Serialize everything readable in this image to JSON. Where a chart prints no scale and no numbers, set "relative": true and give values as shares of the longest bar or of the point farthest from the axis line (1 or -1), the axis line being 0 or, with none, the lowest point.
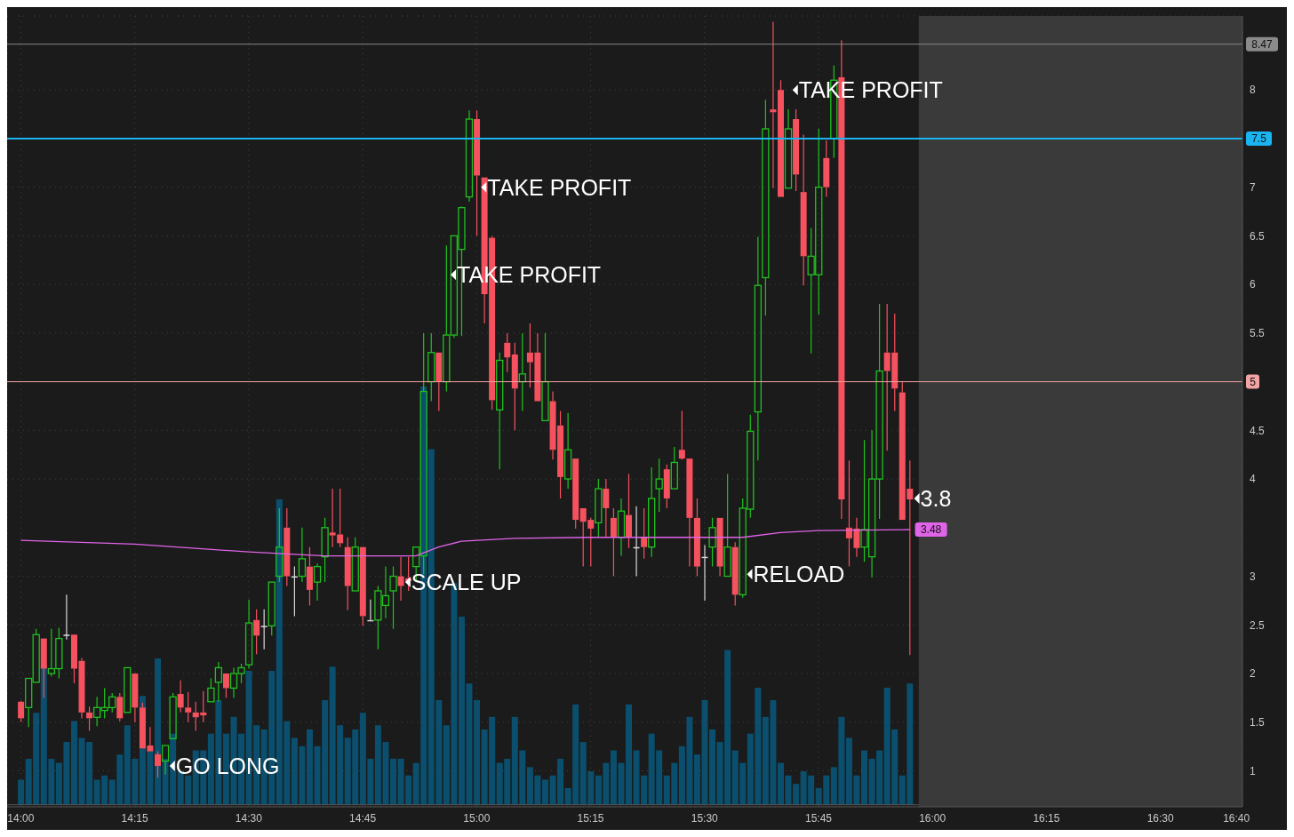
{
  "chart_data": [
    {
      "type": "candlestick",
      "x": [
        14,
        14.0167,
        14.0333,
        14.05,
        14.0667,
        14.0833,
        14.1,
        14.1167,
        14.1333,
        14.15,
        14.1667,
        14.1833,
        14.2,
        14.2167,
        14.2333,
        14.25,
        14.2667,
        14.2833,
        14.3,
        14.3167,
        14.3333,
        14.35,
        14.3667,
        14.3833,
        14.4,
        14.4167,
        14.4333,
        14.45,
        14.4667,
        14.4833,
        14.5,
        14.5167,
        14.5333,
        14.55,
        14.5667,
        14.5833,
        14.6,
        14.6167,
        14.6333,
        14.65,
        14.6667,
        14.6833,
        14.7,
        14.7167,
        14.7333,
        14.75,
        14.7667,
        14.7833,
        14.8,
        14.8167,
        14.8333,
        14.85,
        14.8667,
        14.8833,
        14.9,
        14.9167,
        14.9333,
        14.95,
        14.9667,
        14.9833,
        15,
        15.0167,
        15.0333,
        15.05,
        15.0667,
        15.0833,
        15.1,
        15.1167,
        15.1333,
        15.15,
        15.1667,
        15.1833,
        15.2,
        15.2167,
        15.2333,
        15.25,
        15.2667,
        15.2833,
        15.3,
        15.3167,
        15.3333,
        15.35,
        15.3667,
        15.3833,
        15.4,
        15.4167,
        15.4333,
        15.45,
        15.4667,
        15.4833,
        15.5,
        15.5167,
        15.5333,
        15.55,
        15.5667,
        15.5833,
        15.6,
        15.6167,
        15.6333,
        15.65,
        15.6667,
        15.6833,
        15.7,
        15.7167,
        15.7333,
        15.75,
        15.7667,
        15.7833,
        15.8,
        15.8167,
        15.8333,
        15.85,
        15.8667,
        15.8833,
        15.9,
        15.9167,
        15.9333,
        15.95
      ],
      "ohlc": [
        [
          1.71,
          1.72,
          1.5,
          1.54
        ],
        [
          1.65,
          1.95,
          1.45,
          1.95
        ],
        [
          1.91,
          2.46,
          1.91,
          2.4
        ],
        [
          2.36,
          2.36,
          1.75,
          2.05
        ],
        [
          2.0,
          2.46,
          1.97,
          2.05
        ],
        [
          2.05,
          2.47,
          1.95,
          2.36
        ],
        [
          2.4,
          2.81,
          2.35,
          2.4
        ],
        [
          2.4,
          2.4,
          1.9,
          2.05
        ],
        [
          2.13,
          2.16,
          1.54,
          1.6
        ],
        [
          1.6,
          1.66,
          1.41,
          1.54
        ],
        [
          1.55,
          1.76,
          1.46,
          1.65
        ],
        [
          1.62,
          1.85,
          1.54,
          1.65
        ],
        [
          1.65,
          1.8,
          1.6,
          1.76
        ],
        [
          1.76,
          1.8,
          1.51,
          1.54
        ],
        [
          1.6,
          2.06,
          1.6,
          2.06
        ],
        [
          2.0,
          2.0,
          1.5,
          1.65
        ],
        [
          1.65,
          1.7,
          1.23,
          1.23
        ],
        [
          1.26,
          1.45,
          1.2,
          1.2
        ],
        [
          1.17,
          1.2,
          0.93,
          1.05
        ],
        [
          1.1,
          1.26,
          0.96,
          1.26
        ],
        [
          1.33,
          1.8,
          1.33,
          1.76
        ],
        [
          1.79,
          1.93,
          1.6,
          1.65
        ],
        [
          1.65,
          1.81,
          1.5,
          1.6
        ],
        [
          1.6,
          1.71,
          1.41,
          1.55
        ],
        [
          1.6,
          1.82,
          1.5,
          1.57
        ],
        [
          1.71,
          1.95,
          1.71,
          1.85
        ],
        [
          1.91,
          2.12,
          1.71,
          2.06
        ],
        [
          2.0,
          2.0,
          1.75,
          1.85
        ],
        [
          1.85,
          2.06,
          1.75,
          2.0
        ],
        [
          2.0,
          2.1,
          1.9,
          2.06
        ],
        [
          2.09,
          2.76,
          2.05,
          2.52
        ],
        [
          2.55,
          2.66,
          2.2,
          2.39
        ],
        [
          2.49,
          2.66,
          2.25,
          2.49
        ],
        [
          2.49,
          2.94,
          2.39,
          2.94
        ],
        [
          3.0,
          3.7,
          2.94,
          3.3
        ],
        [
          3.5,
          3.7,
          2.9,
          3.0
        ],
        [
          3.0,
          3.1,
          2.59,
          3.0
        ],
        [
          3.0,
          3.5,
          2.94,
          3.18
        ],
        [
          3.1,
          3.3,
          2.7,
          2.86
        ],
        [
          2.94,
          3.13,
          2.75,
          3.1
        ],
        [
          3.2,
          3.6,
          2.94,
          3.5
        ],
        [
          3.45,
          3.9,
          3.3,
          3.42
        ],
        [
          3.43,
          3.9,
          3.3,
          3.34
        ],
        [
          3.3,
          3.4,
          2.65,
          2.9
        ],
        [
          2.85,
          3.4,
          2.85,
          3.3
        ],
        [
          3.3,
          3.3,
          2.49,
          2.59
        ],
        [
          2.55,
          2.76,
          2.55,
          2.55
        ],
        [
          2.55,
          2.9,
          2.25,
          2.85
        ],
        [
          2.7,
          3.1,
          2.57,
          2.8
        ],
        [
          2.85,
          3.1,
          2.46,
          3.0
        ],
        [
          3.0,
          3.2,
          2.75,
          2.9
        ],
        [
          2.98,
          3.2,
          2.85,
          2.95
        ],
        [
          3.1,
          3.3,
          2.94,
          3.3
        ],
        [
          3.21,
          5.5,
          3.02,
          4.9
        ],
        [
          5.0,
          5.5,
          4.8,
          5.3
        ],
        [
          5.3,
          5.3,
          4.7,
          5.0
        ],
        [
          5.0,
          6.4,
          4.9,
          5.48
        ],
        [
          5.48,
          6.5,
          5.45,
          6.5
        ],
        [
          6.36,
          6.8,
          5.47,
          6.79
        ],
        [
          6.9,
          7.79,
          6.85,
          7.7
        ],
        [
          7.7,
          7.79,
          6.5,
          7.12
        ],
        [
          7.1,
          7.1,
          5.6,
          5.9
        ],
        [
          6.48,
          6.5,
          4.71,
          4.81
        ],
        [
          4.71,
          5.3,
          4.1,
          5.22
        ],
        [
          5.4,
          5.5,
          5.1,
          5.25
        ],
        [
          5.28,
          5.4,
          4.5,
          4.93
        ],
        [
          5.0,
          5.5,
          4.7,
          5.08
        ],
        [
          5.3,
          5.6,
          4.94,
          5.2
        ],
        [
          5.3,
          5.5,
          4.8,
          4.8
        ],
        [
          4.6,
          5.5,
          4.6,
          5.0
        ],
        [
          4.8,
          4.9,
          4.2,
          4.3
        ],
        [
          4.55,
          4.7,
          3.8,
          4.02
        ],
        [
          4.0,
          4.68,
          3.9,
          4.3
        ],
        [
          4.21,
          4.21,
          3.49,
          3.58
        ],
        [
          3.7,
          3.7,
          3.1,
          3.56
        ],
        [
          3.58,
          3.6,
          3.1,
          3.49
        ],
        [
          3.55,
          4.0,
          3.4,
          3.9
        ],
        [
          3.9,
          4.0,
          3.4,
          3.7
        ],
        [
          3.6,
          3.7,
          3.0,
          3.4
        ],
        [
          3.4,
          3.8,
          3.21,
          3.67
        ],
        [
          3.63,
          4.05,
          3.29,
          3.4
        ],
        [
          3.3,
          3.72,
          3.0,
          3.3
        ],
        [
          3.4,
          3.7,
          3.18,
          3.3
        ],
        [
          3.3,
          4.12,
          3.2,
          3.8
        ],
        [
          3.9,
          4.21,
          3.66,
          4.0
        ],
        [
          4.1,
          4.15,
          3.7,
          3.8
        ],
        [
          3.9,
          4.33,
          3.9,
          4.17
        ],
        [
          4.3,
          4.7,
          4.2,
          4.21
        ],
        [
          4.21,
          4.21,
          3.1,
          3.6
        ],
        [
          3.6,
          3.8,
          3.0,
          3.1
        ],
        [
          3.2,
          3.32,
          2.75,
          3.2
        ],
        [
          3.3,
          3.6,
          3.1,
          3.5
        ],
        [
          3.6,
          3.6,
          3.0,
          3.1
        ],
        [
          3.0,
          4.05,
          3.0,
          3.3
        ],
        [
          3.3,
          3.35,
          2.7,
          2.81
        ],
        [
          2.81,
          3.8,
          2.78,
          3.7
        ],
        [
          3.69,
          4.66,
          3.6,
          4.49
        ],
        [
          4.69,
          6.49,
          4.19,
          5.99
        ],
        [
          6.07,
          7.9,
          5.68,
          7.6
        ],
        [
          7.8,
          8.7,
          6.99,
          7.77
        ],
        [
          8.0,
          8.1,
          6.9,
          6.9
        ],
        [
          6.99,
          7.8,
          6.99,
          7.6
        ],
        [
          7.7,
          7.8,
          6.96,
          7.13
        ],
        [
          6.95,
          7.54,
          5.99,
          6.29
        ],
        [
          6.1,
          6.58,
          5.29,
          6.29
        ],
        [
          6.1,
          7.6,
          5.69,
          7.0
        ],
        [
          7.3,
          7.48,
          6.9,
          7.0
        ],
        [
          7.5,
          8.25,
          7.3,
          8.1
        ],
        [
          8.13,
          8.51,
          3.59,
          3.79
        ],
        [
          3.5,
          4.19,
          3.1,
          3.39
        ],
        [
          3.49,
          3.6,
          3.2,
          3.29
        ],
        [
          3.3,
          4.4,
          3.15,
          3.48
        ],
        [
          3.2,
          4.5,
          2.99,
          4.0
        ],
        [
          4.0,
          5.8,
          3.59,
          5.11
        ],
        [
          5.3,
          5.8,
          4.29,
          5.11
        ],
        [
          5.3,
          5.7,
          4.7,
          4.93
        ],
        [
          4.89,
          5.0,
          3.58,
          3.58
        ],
        [
          3.9,
          4.19,
          2.19,
          3.79
        ]
      ],
      "colors": [
        "#f5515f",
        "#1ec31e",
        "#1ec31e",
        "#f5515f",
        "#1ec31e",
        "#1ec31e",
        "#d9d9d9",
        "#f5515f",
        "#f5515f",
        "#f5515f",
        "#1ec31e",
        "#1ec31e",
        "#1ec31e",
        "#f5515f",
        "#1ec31e",
        "#f5515f",
        "#f5515f",
        "#f5515f",
        "#f5515f",
        "#1ec31e",
        "#1ec31e",
        "#f5515f",
        "#f5515f",
        "#f5515f",
        "#f5515f",
        "#1ec31e",
        "#1ec31e",
        "#f5515f",
        "#1ec31e",
        "#1ec31e",
        "#1ec31e",
        "#f5515f",
        "#d9d9d9",
        "#1ec31e",
        "#1ec31e",
        "#f5515f",
        "#d9d9d9",
        "#1ec31e",
        "#f5515f",
        "#1ec31e",
        "#1ec31e",
        "#f5515f",
        "#f5515f",
        "#f5515f",
        "#1ec31e",
        "#f5515f",
        "#d9d9d9",
        "#1ec31e",
        "#1ec31e",
        "#1ec31e",
        "#f5515f",
        "#f5515f",
        "#1ec31e",
        "#1ec31e",
        "#1ec31e",
        "#f5515f",
        "#1ec31e",
        "#1ec31e",
        "#1ec31e",
        "#1ec31e",
        "#f5515f",
        "#f5515f",
        "#f5515f",
        "#1ec31e",
        "#f5515f",
        "#f5515f",
        "#1ec31e",
        "#f5515f",
        "#f5515f",
        "#1ec31e",
        "#f5515f",
        "#f5515f",
        "#1ec31e",
        "#f5515f",
        "#f5515f",
        "#f5515f",
        "#1ec31e",
        "#f5515f",
        "#f5515f",
        "#1ec31e",
        "#f5515f",
        "#d9d9d9",
        "#f5515f",
        "#1ec31e",
        "#1ec31e",
        "#f5515f",
        "#1ec31e",
        "#f5515f",
        "#f5515f",
        "#f5515f",
        "#d9d9d9",
        "#1ec31e",
        "#f5515f",
        "#1ec31e",
        "#f5515f",
        "#1ec31e",
        "#1ec31e",
        "#1ec31e",
        "#1ec31e",
        "#f5515f",
        "#f5515f",
        "#1ec31e",
        "#f5515f",
        "#f5515f",
        "#1ec31e",
        "#1ec31e",
        "#f5515f",
        "#1ec31e",
        "#f5515f",
        "#f5515f",
        "#f5515f",
        "#1ec31e",
        "#1ec31e",
        "#1ec31e",
        "#f5515f",
        "#f5515f",
        "#f5515f",
        "#f5515f"
      ],
      "series": [
        {
          "type": "line",
          "color": "#e064e8",
          "x": [
            14,
            14.25,
            14.5,
            14.6667,
            14.8667,
            14.9167,
            14.9667,
            15.0833,
            15.25,
            15.5833,
            15.6667,
            15.75,
            15.95
          ],
          "values": [
            3.37,
            3.33,
            3.25,
            3.21,
            3.21,
            3.3,
            3.36,
            3.39,
            3.4,
            3.4,
            3.45,
            3.47,
            3.48
          ],
          "value_labels": [
            null,
            null,
            null,
            null,
            null,
            null,
            null,
            null,
            null,
            null,
            null,
            null,
            "3.48"
          ]
        }
      ],
      "xlim": [
        13.97,
        16.68
      ],
      "xticks": [
        {
          "value": 14,
          "label": "14:00"
        },
        {
          "value": 14.25,
          "label": "14:15"
        },
        {
          "value": 14.5,
          "label": "14:30"
        },
        {
          "value": 14.75,
          "label": "14:45"
        },
        {
          "value": 15,
          "label": "15:00"
        },
        {
          "value": 15.25,
          "label": "15:15"
        },
        {
          "value": 15.5,
          "label": "15:30"
        },
        {
          "value": 15.75,
          "label": "15:45"
        },
        {
          "value": 16,
          "label": "16:00"
        },
        {
          "value": 16.25,
          "label": "16:15"
        },
        {
          "value": 16.5,
          "label": "16:30"
        },
        {
          "value": 16.6667,
          "label": "16:40"
        }
      ],
      "ylim": [
        0.63,
        8.76
      ],
      "yticks": [
        1,
        1.5,
        2,
        2.5,
        3,
        4,
        4.5,
        5.5,
        6,
        6.5,
        7,
        8
      ],
      "grid": true,
      "ref_lines": [
        {
          "axis": "y",
          "value": 8.47,
          "label": "8.47",
          "color": "#8a8a8a"
        },
        {
          "axis": "y",
          "value": 7.5,
          "label": "7.5",
          "color": "#1ab4f0"
        },
        {
          "axis": "y",
          "value": 5,
          "label": "5",
          "color": "#f2a3a3"
        }
      ],
      "bands": [
        {
          "axis": "x",
          "from": 15.97,
          "to": 16.68,
          "color": "#3a3a3a"
        }
      ],
      "annotations": [
        {
          "text": "GO LONG",
          "x": 14.3167,
          "y": 1.05
        },
        {
          "text": "SCALE UP",
          "x": 14.8333,
          "y": 2.94
        },
        {
          "text": "TAKE PROFIT",
          "x": 14.9333,
          "y": 6.1
        },
        {
          "text": "TAKE PROFIT",
          "x": 15,
          "y": 7.0
        },
        {
          "text": "RELOAD",
          "x": 15.5833,
          "y": 3.02
        },
        {
          "text": "TAKE PROFIT",
          "x": 15.6833,
          "y": 8.0
        },
        {
          "text": "3.8",
          "x": 15.95,
          "y": 3.8
        }
      ]
    },
    {
      "type": "bar",
      "relative": true,
      "color": "#0b4f6e",
      "x": [
        14,
        14.0167,
        14.0333,
        14.05,
        14.0667,
        14.0833,
        14.1,
        14.1167,
        14.1333,
        14.15,
        14.1667,
        14.1833,
        14.2,
        14.2167,
        14.2333,
        14.25,
        14.2667,
        14.2833,
        14.3,
        14.3167,
        14.3333,
        14.35,
        14.3667,
        14.3833,
        14.4,
        14.4167,
        14.4333,
        14.45,
        14.4667,
        14.4833,
        14.5,
        14.5167,
        14.5333,
        14.55,
        14.5667,
        14.5833,
        14.6,
        14.6167,
        14.6333,
        14.65,
        14.6667,
        14.6833,
        14.7,
        14.7167,
        14.7333,
        14.75,
        14.7667,
        14.7833,
        14.8,
        14.8167,
        14.8333,
        14.85,
        14.8667,
        14.8833,
        14.9,
        14.9167,
        14.9333,
        14.95,
        14.9667,
        14.9833,
        15,
        15.0167,
        15.0333,
        15.05,
        15.0667,
        15.0833,
        15.1,
        15.1167,
        15.1333,
        15.15,
        15.1667,
        15.1833,
        15.2,
        15.2167,
        15.2333,
        15.25,
        15.2667,
        15.2833,
        15.3,
        15.3167,
        15.3333,
        15.35,
        15.3667,
        15.3833,
        15.4,
        15.4167,
        15.4333,
        15.45,
        15.4667,
        15.4833,
        15.5,
        15.5167,
        15.5333,
        15.55,
        15.5667,
        15.5833,
        15.6,
        15.6167,
        15.6333,
        15.65,
        15.6667,
        15.6833,
        15.7,
        15.7167,
        15.7333,
        15.75,
        15.7667,
        15.7833,
        15.8,
        15.8167,
        15.8333,
        15.85,
        15.8667,
        15.8833,
        15.9,
        15.9167,
        15.9333,
        15.95
      ],
      "values": [
        0.06,
        0.11,
        0.22,
        0.33,
        0.11,
        0.1,
        0.15,
        0.2,
        0.16,
        0.15,
        0.06,
        0.07,
        0.06,
        0.12,
        0.19,
        0.11,
        0.26,
        0.13,
        0.35,
        0.11,
        0.17,
        0.08,
        0.07,
        0.13,
        0.13,
        0.17,
        0.25,
        0.17,
        0.21,
        0.17,
        0.32,
        0.19,
        0.18,
        0.32,
        0.73,
        0.2,
        0.16,
        0.14,
        0.18,
        0.14,
        0.25,
        0.33,
        0.19,
        0.16,
        0.18,
        0.22,
        0.11,
        0.19,
        0.15,
        0.11,
        0.11,
        0.07,
        0.1,
        1,
        0.85,
        0.25,
        0.19,
        0.53,
        0.45,
        0.29,
        0.25,
        0.18,
        0.21,
        0.1,
        0.11,
        0.21,
        0.13,
        0.09,
        0.07,
        0.06,
        0.07,
        0.11,
        0.04,
        0.24,
        0.15,
        0.08,
        0.07,
        0.1,
        0.13,
        0.1,
        0.24,
        0.13,
        0.07,
        0.17,
        0.13,
        0.07,
        0.1,
        0.14,
        0.21,
        0.12,
        0.25,
        0.18,
        0.15,
        0.37,
        0.13,
        0.1,
        0.17,
        0.28,
        0.21,
        0.25,
        0.1,
        0.07,
        0.05,
        0.08,
        0.07,
        0.04,
        0.07,
        0.09,
        0.21,
        0.16,
        0.07,
        0.13,
        0.11,
        0.13,
        0.28,
        0.18,
        0.07,
        0.29
      ],
      "xlim": [
        13.97,
        16.68
      ]
    }
  ]
}
